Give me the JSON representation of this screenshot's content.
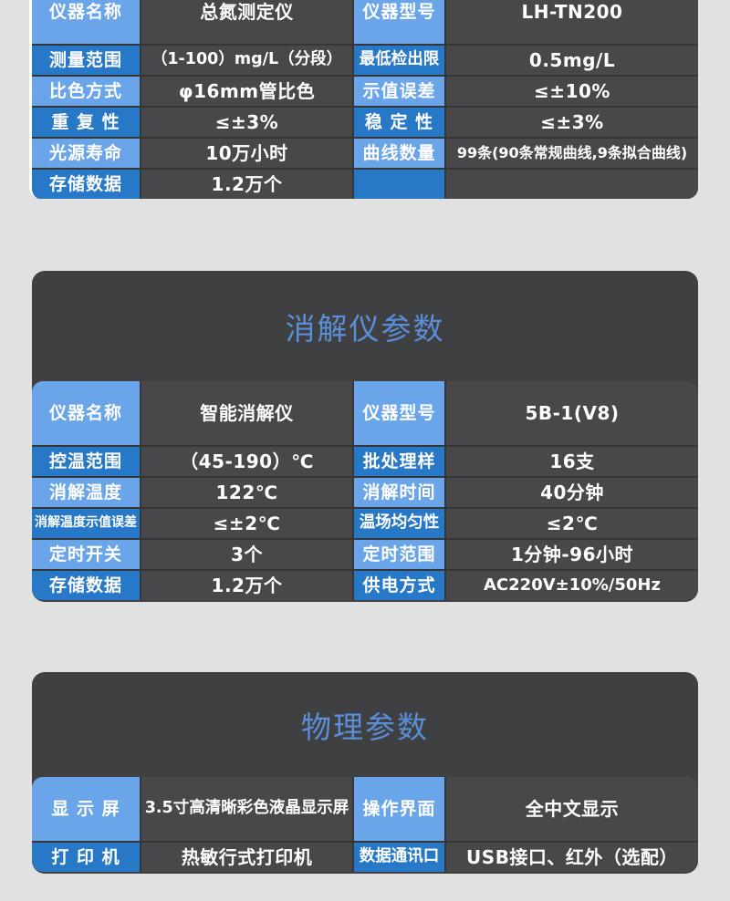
{
  "colors": {
    "page_background": "#e1e1e1",
    "panel_dark": "#3e4042",
    "cell_dark": "#48484a",
    "grid_line": "#343638",
    "label_light_blue": "#6aa5e9",
    "label_dark_blue": "#2878c8",
    "title_blue": "#5b8ed8",
    "text_white": "#ffffff"
  },
  "sections": [
    {
      "id": "instrument",
      "title": "",
      "rows": [
        {
          "shade": "light",
          "tall": true,
          "l1": "仪器名称",
          "v1": "总氮测定仪",
          "l2": "仪器型号",
          "v2": "LH-TN200"
        },
        {
          "shade": "dark",
          "tall": false,
          "l1": "测量范围",
          "v1": "（1-100）mg/L（分段）",
          "l2": "最低检出限",
          "v2": "0.5mg/L"
        },
        {
          "shade": "light",
          "tall": false,
          "l1": "比色方式",
          "v1": "φ16mm管比色",
          "l2": "示值误差",
          "v2": "≤±10%"
        },
        {
          "shade": "dark",
          "tall": false,
          "l1": "重 复 性",
          "v1": "≤±3%",
          "l2": "稳 定 性",
          "v2": "≤±3%"
        },
        {
          "shade": "light",
          "tall": false,
          "l1": "光源寿命",
          "v1": "10万小时",
          "l2": "曲线数量",
          "v2": "99条(90条常规曲线,9条拟合曲线)"
        },
        {
          "shade": "dark",
          "tall": false,
          "l1": "存储数据",
          "v1": "1.2万个",
          "l2": "",
          "v2": ""
        }
      ]
    },
    {
      "id": "digester",
      "title": "消解仪参数",
      "rows": [
        {
          "shade": "light",
          "tall": true,
          "l1": "仪器名称",
          "v1": "智能消解仪",
          "l2": "仪器型号",
          "v2": "5B-1(V8)"
        },
        {
          "shade": "dark",
          "tall": false,
          "l1": "控温范围",
          "v1": "（45-190）℃",
          "l2": "批处理样",
          "v2": "16支"
        },
        {
          "shade": "light",
          "tall": false,
          "l1": "消解温度",
          "v1": "122℃",
          "l2": "消解时间",
          "v2": "40分钟"
        },
        {
          "shade": "dark",
          "tall": false,
          "l1": "消解温度示值误差",
          "v1": "≤±2℃",
          "l2": "温场均匀性",
          "v2": "≤2℃"
        },
        {
          "shade": "light",
          "tall": false,
          "l1": "定时开关",
          "v1": "3个",
          "l2": "定时范围",
          "v2": "1分钟-96小时"
        },
        {
          "shade": "dark",
          "tall": false,
          "l1": "存储数据",
          "v1": "1.2万个",
          "l2": "供电方式",
          "v2": "AC220V±10%/50Hz"
        }
      ]
    },
    {
      "id": "physical",
      "title": "物理参数",
      "rows": [
        {
          "shade": "light",
          "tall": true,
          "l1": "显 示 屏",
          "v1": "3.5寸高清晰彩色液晶显示屏",
          "l2": "操作界面",
          "v2": "全中文显示"
        },
        {
          "shade": "dark",
          "tall": false,
          "l1": "打 印 机",
          "v1": "热敏行式打印机",
          "l2": "数据通讯口",
          "v2": "USB接口、红外（选配）"
        }
      ]
    }
  ]
}
